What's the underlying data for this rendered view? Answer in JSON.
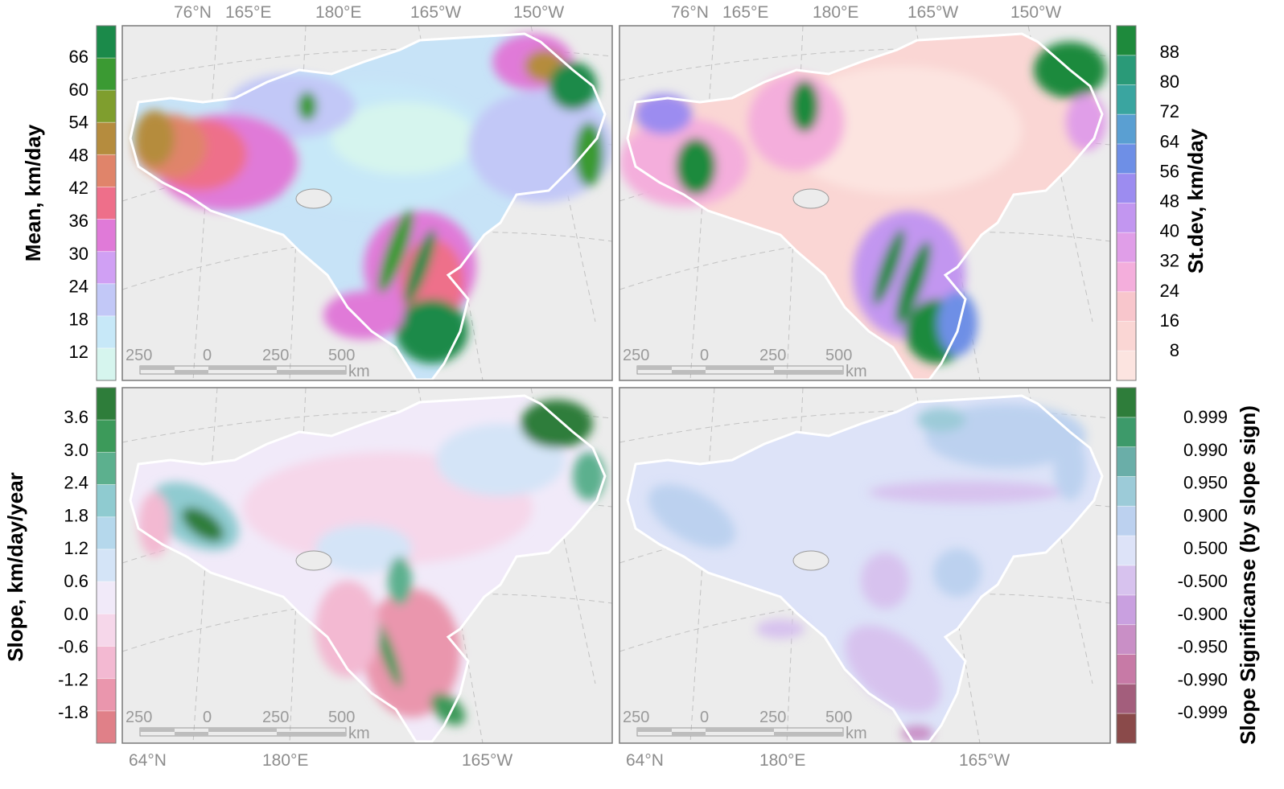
{
  "top_graticule_labels": [
    "76°N",
    "165°E",
    "180°E",
    "165°W",
    "150°W"
  ],
  "bottom_graticule_labels": [
    "64°N",
    "180°E",
    "165°W"
  ],
  "scalebar": {
    "labels": [
      "250",
      "0",
      "250",
      "500"
    ],
    "unit": "km"
  },
  "colorbars": {
    "mean": {
      "title": "Mean, km/day",
      "ticks": [
        "66",
        "60",
        "54",
        "48",
        "42",
        "36",
        "30",
        "24",
        "18",
        "12"
      ],
      "colors": [
        "#1b8a4a",
        "#3b9a33",
        "#7f9e2e",
        "#b58c3e",
        "#e0846a",
        "#ee6f8a",
        "#e07ad8",
        "#d0a0f4",
        "#c2c8f7",
        "#c7e8f8",
        "#d6f5ee"
      ]
    },
    "stdev": {
      "title": "St.dev, km/day",
      "ticks": [
        "88",
        "80",
        "72",
        "64",
        "56",
        "48",
        "40",
        "32",
        "24",
        "16",
        "8"
      ],
      "colors": [
        "#1e8a3c",
        "#2a9a78",
        "#3aa5a0",
        "#5a9fd2",
        "#6e8fe6",
        "#9c8cf0",
        "#c296f0",
        "#e09ee8",
        "#f4aedc",
        "#f8c6cc",
        "#fad6d4",
        "#fce4e0"
      ]
    },
    "slope": {
      "title": "Slope, km/day/year",
      "ticks": [
        "3.6",
        "3.0",
        "2.4",
        "1.8",
        "1.2",
        "0.6",
        "0.0",
        "-0.6",
        "-1.2",
        "-1.8"
      ],
      "colors": [
        "#2e7d3a",
        "#3c9a5a",
        "#5cb08e",
        "#8fcbd0",
        "#b5d8ec",
        "#d4e4f7",
        "#f1eaf9",
        "#f6d7ea",
        "#f3b9d2",
        "#ea96ad",
        "#e08088"
      ]
    },
    "significance": {
      "title": "Slope Significanse (by slope sign)",
      "ticks": [
        "0.999",
        "0.990",
        "0.950",
        "0.900",
        "0.500",
        "-0.500",
        "-0.900",
        "-0.950",
        "-0.990",
        "-0.999"
      ],
      "colors": [
        "#2e7d3a",
        "#3d9a6a",
        "#6aaea8",
        "#9ccbd8",
        "#bcd1ef",
        "#dde3f8",
        "#d7c2ee",
        "#c9a0e0",
        "#c98fc6",
        "#c77aa6",
        "#a35e7c",
        "#8a4a4a"
      ]
    }
  },
  "palettes": {
    "land": "#ececec",
    "coast": "#9a9a9a",
    "grid": "#c8c8c8",
    "frame": "#7a7a7a"
  }
}
